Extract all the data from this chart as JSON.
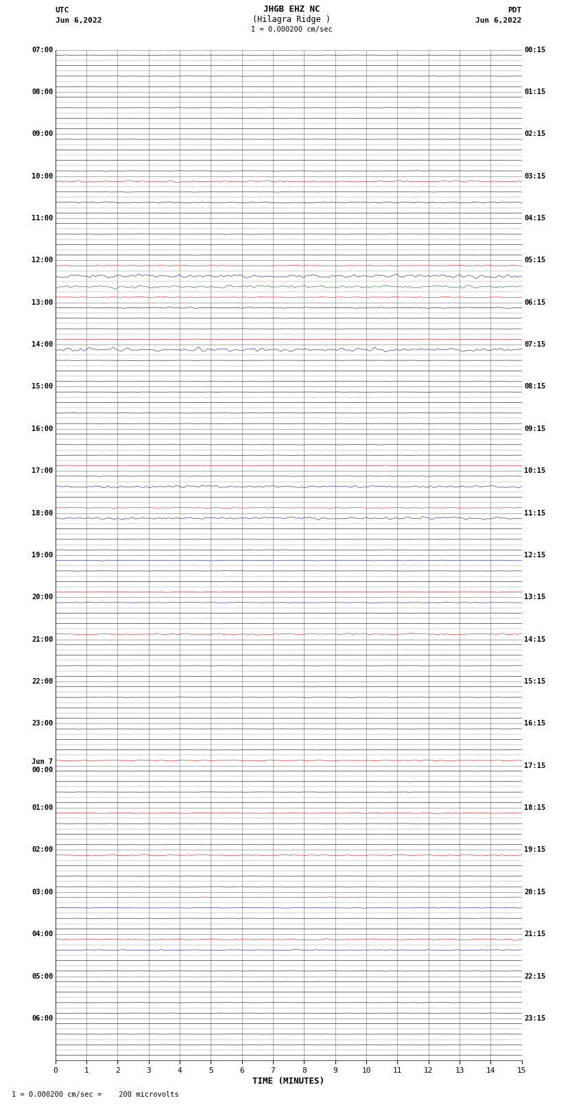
{
  "title_line1": "JHGB EHZ NC",
  "title_line2": "(Hilagra Ridge )",
  "title_line3": "I = 0.000200 cm/sec",
  "left_header_line1": "UTC",
  "left_header_line2": "Jun 6,2022",
  "right_header_line1": "PDT",
  "right_header_line2": "Jun 6,2022",
  "xlabel": "TIME (MINUTES)",
  "footer": "1 = 0.000200 cm/sec =    200 microvolts",
  "background_color": "#ffffff",
  "grid_color": "#888888",
  "trace_color_normal": "#000000",
  "utc_labels": [
    "07:00",
    "08:00",
    "09:00",
    "10:00",
    "11:00",
    "12:00",
    "13:00",
    "14:00",
    "15:00",
    "16:00",
    "17:00",
    "18:00",
    "19:00",
    "20:00",
    "21:00",
    "22:00",
    "23:00",
    "Jun 7\n00:00",
    "01:00",
    "02:00",
    "03:00",
    "04:00",
    "05:00",
    "06:00"
  ],
  "pdt_labels": [
    "00:15",
    "01:15",
    "02:15",
    "03:15",
    "04:15",
    "05:15",
    "06:15",
    "07:15",
    "08:15",
    "09:15",
    "10:15",
    "11:15",
    "12:15",
    "13:15",
    "14:15",
    "15:15",
    "16:15",
    "17:15",
    "18:15",
    "19:15",
    "20:15",
    "21:15",
    "22:15",
    "23:15"
  ],
  "num_rows": 96,
  "rows_per_hour": 4,
  "num_hours": 24,
  "special_rows": {
    "12": {
      "color": "#cc0000",
      "amplitude": 1.5
    },
    "13": {
      "color": "#0000aa",
      "amplitude": 0.5
    },
    "14": {
      "color": "#000000",
      "amplitude": 1.2
    },
    "20": {
      "color": "#cc0000",
      "amplitude": 0.8
    },
    "21": {
      "color": "#0000aa",
      "amplitude": 4.0
    },
    "22": {
      "color": "#006600",
      "amplitude": 3.0
    },
    "23": {
      "color": "#cc0000",
      "amplitude": 0.8
    },
    "24": {
      "color": "#000000",
      "amplitude": 1.2
    },
    "27": {
      "color": "#cc0000",
      "amplitude": 0.6
    },
    "28": {
      "color": "#0000aa",
      "amplitude": 4.0
    },
    "39": {
      "color": "#cc0000",
      "amplitude": 0.8
    },
    "40": {
      "color": "#0000aa",
      "amplitude": 0.5
    },
    "41": {
      "color": "#0000aa",
      "amplitude": 2.5
    },
    "43": {
      "color": "#cc0000",
      "amplitude": 0.6
    },
    "44": {
      "color": "#0000aa",
      "amplitude": 2.8
    },
    "47": {
      "color": "#0000aa",
      "amplitude": 0.5
    },
    "48": {
      "color": "#0000aa",
      "amplitude": 0.8
    },
    "51": {
      "color": "#cc0000",
      "amplitude": 0.8
    },
    "52": {
      "color": "#0000aa",
      "amplitude": 0.6
    },
    "55": {
      "color": "#cc0000",
      "amplitude": 1.5
    },
    "56": {
      "color": "#0000aa",
      "amplitude": 0.5
    },
    "67": {
      "color": "#cc0000",
      "amplitude": 0.8
    },
    "72": {
      "color": "#cc0000",
      "amplitude": 0.8
    },
    "76": {
      "color": "#cc0000",
      "amplitude": 1.2
    },
    "80": {
      "color": "#cc0000",
      "amplitude": 0.8
    },
    "81": {
      "color": "#0000aa",
      "amplitude": 0.5
    },
    "84": {
      "color": "#cc0000",
      "amplitude": 1.5
    },
    "85": {
      "color": "#0000aa",
      "amplitude": 0.8
    }
  }
}
